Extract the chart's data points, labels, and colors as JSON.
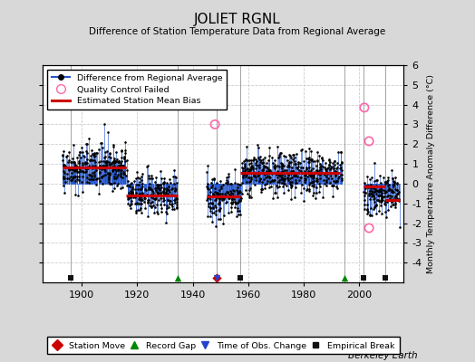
{
  "title": "JOLIET RGNL",
  "subtitle": "Difference of Station Temperature Data from Regional Average",
  "ylabel": "Monthly Temperature Anomaly Difference (°C)",
  "credit": "Berkeley Earth",
  "xlim": [
    1886,
    2016
  ],
  "ylim": [
    -5,
    6
  ],
  "yticks": [
    -4,
    -3,
    -2,
    -1,
    0,
    1,
    2,
    3,
    4,
    5
  ],
  "ytick_top": 6,
  "xticks": [
    1900,
    1920,
    1940,
    1960,
    1980,
    2000
  ],
  "bg_color": "#d8d8d8",
  "plot_bg_color": "#ffffff",
  "grid_color": "#cccccc",
  "segments": [
    {
      "start": 1893.0,
      "end": 1916.0,
      "bias": 0.8
    },
    {
      "start": 1916.0,
      "end": 1934.5,
      "bias": -0.6
    },
    {
      "start": 1945.0,
      "end": 1957.0,
      "bias": -0.65
    },
    {
      "start": 1957.0,
      "end": 1973.0,
      "bias": 0.55
    },
    {
      "start": 1973.0,
      "end": 1978.5,
      "bias": 0.55
    },
    {
      "start": 1978.5,
      "end": 1993.0,
      "bias": 0.55
    },
    {
      "start": 2001.5,
      "end": 2009.5,
      "bias": -0.15
    },
    {
      "start": 2009.5,
      "end": 2014.5,
      "bias": -0.85
    }
  ],
  "station_moves": [
    1948.5
  ],
  "record_gaps": [
    1934.5,
    1994.5
  ],
  "obs_changes": [
    1948.5
  ],
  "empirical_breaks": [
    1896.0,
    1957.0,
    2001.5,
    2009.5
  ],
  "qc_failed": [
    [
      1948.0,
      3.0
    ],
    [
      2001.8,
      3.85
    ],
    [
      2003.5,
      2.15
    ],
    [
      2003.5,
      -2.25
    ]
  ],
  "data_clusters": [
    {
      "start": 1893.0,
      "end": 1916.5,
      "n": 280,
      "mean": 0.85,
      "std": 0.55,
      "base": 0.0
    },
    {
      "start": 1916.5,
      "end": 1934.5,
      "n": 220,
      "mean": -0.55,
      "std": 0.55,
      "base": 0.0
    },
    {
      "start": 1945.0,
      "end": 1957.5,
      "n": 155,
      "mean": -0.65,
      "std": 0.65,
      "base": 0.0
    },
    {
      "start": 1957.5,
      "end": 1994.0,
      "n": 440,
      "mean": 0.55,
      "std": 0.55,
      "base": 0.0
    },
    {
      "start": 2001.5,
      "end": 2014.5,
      "n": 165,
      "mean": -0.55,
      "std": 0.6,
      "base": 0.0
    }
  ],
  "line_color": "#2255cc",
  "dot_color": "#000000",
  "bias_line_color": "#cc0000",
  "qc_color": "#ff66aa",
  "station_move_color": "#cc0000",
  "record_gap_color": "#008800",
  "obs_change_color": "#2244cc",
  "empirical_break_color": "#111111",
  "event_line_color": "#999999",
  "stem_base": 0.0
}
